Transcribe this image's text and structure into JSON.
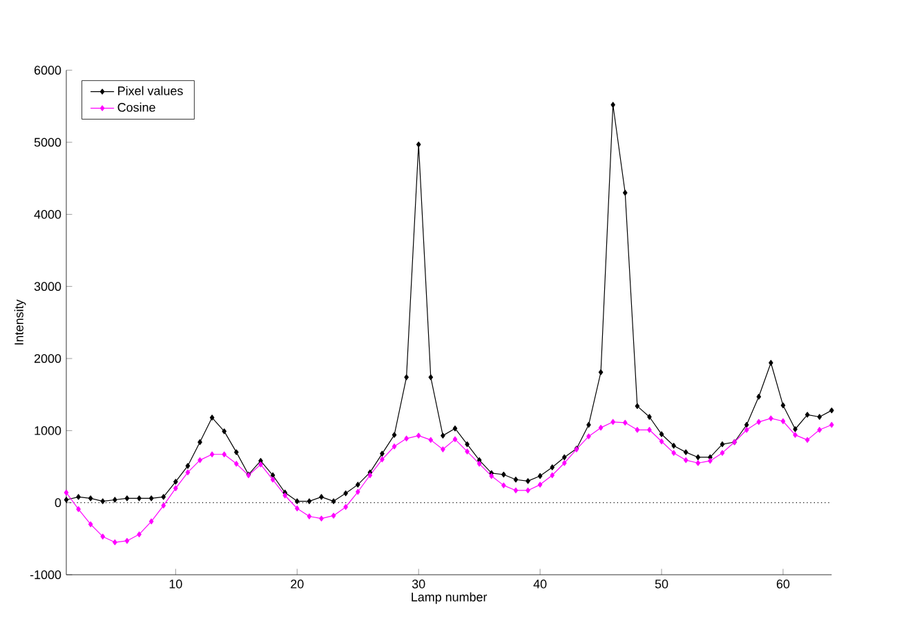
{
  "chart_data": {
    "type": "line",
    "xlabel": "Lamp number",
    "ylabel": "Intensity",
    "xlim": [
      1,
      64
    ],
    "xticks": [
      10,
      20,
      30,
      40,
      50,
      60
    ],
    "ylim": [
      -1000,
      6000
    ],
    "yticks": [
      -1000,
      0,
      1000,
      2000,
      3000,
      4000,
      5000,
      6000
    ],
    "x": [
      1,
      2,
      3,
      4,
      5,
      6,
      7,
      8,
      9,
      10,
      11,
      12,
      13,
      14,
      15,
      16,
      17,
      18,
      19,
      20,
      21,
      22,
      23,
      24,
      25,
      26,
      27,
      28,
      29,
      30,
      31,
      32,
      33,
      34,
      35,
      36,
      37,
      38,
      39,
      40,
      41,
      42,
      43,
      44,
      45,
      46,
      47,
      48,
      49,
      50,
      51,
      52,
      53,
      54,
      55,
      56,
      57,
      58,
      59,
      60,
      61,
      62,
      63,
      64
    ],
    "marker": "diamond",
    "legend": "top left",
    "grid": false,
    "ref_lines": [
      {
        "axis": "y",
        "value": 0,
        "line_style": "dotted",
        "color": "#000000"
      }
    ],
    "series": [
      {
        "name": "Pixel values",
        "color": "#000000",
        "values": [
          40,
          80,
          60,
          20,
          40,
          60,
          60,
          60,
          80,
          290,
          510,
          840,
          1180,
          990,
          700,
          390,
          580,
          380,
          140,
          20,
          20,
          80,
          20,
          130,
          250,
          420,
          680,
          940,
          1740,
          4970,
          1740,
          930,
          1030,
          810,
          590,
          410,
          390,
          320,
          300,
          370,
          490,
          630,
          750,
          1080,
          1810,
          5520,
          4300,
          1340,
          1190,
          950,
          790,
          700,
          630,
          630,
          810,
          840,
          1080,
          1470,
          1940,
          1350,
          1020,
          1220,
          1190,
          1280
        ]
      },
      {
        "name": "Cosine",
        "color": "#ff00ff",
        "values": [
          140,
          -90,
          -300,
          -470,
          -550,
          -530,
          -440,
          -260,
          -40,
          200,
          420,
          590,
          670,
          670,
          540,
          380,
          530,
          320,
          100,
          -80,
          -190,
          -220,
          -180,
          -60,
          150,
          380,
          600,
          780,
          890,
          930,
          870,
          740,
          880,
          710,
          540,
          370,
          240,
          170,
          170,
          250,
          380,
          550,
          740,
          920,
          1040,
          1120,
          1110,
          1010,
          1010,
          850,
          690,
          590,
          550,
          580,
          690,
          840,
          1010,
          1120,
          1170,
          1130,
          940,
          870,
          1010,
          1080
        ]
      }
    ]
  }
}
